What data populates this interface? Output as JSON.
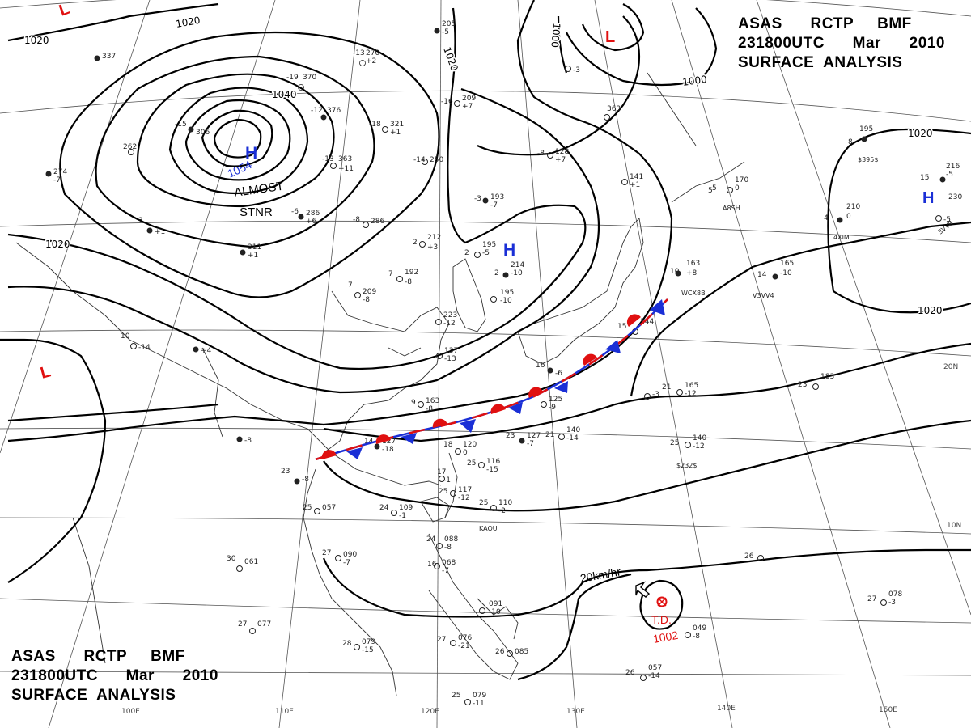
{
  "header": {
    "line1_parts": [
      "ASAS",
      "RCTP",
      "BMF"
    ],
    "line2_parts": [
      "231800UTC",
      "Mar",
      "2010"
    ],
    "line3": "SURFACE  ANALYSIS"
  },
  "pressure_centers": [
    {
      "type": "H",
      "value": "1054",
      "note": "ALMOST",
      "note2": "STNR",
      "color": "#1a2fd6"
    },
    {
      "type": "H",
      "value": "",
      "color": "#1a2fd6"
    },
    {
      "type": "H",
      "value": "",
      "color": "#1a2fd6"
    },
    {
      "type": "L",
      "value": "",
      "color": "#e01010"
    },
    {
      "type": "L",
      "value": "",
      "color": "#e01010"
    },
    {
      "type": "L",
      "value": "",
      "color": "#e01010"
    }
  ],
  "td": {
    "label": "T.D.",
    "pressure": "1002",
    "movement": "20km/hr",
    "color": "#e01010"
  },
  "isobar_labels": [
    "1020",
    "1020",
    "1020",
    "1040",
    "1020",
    "1000",
    "1000",
    "1020",
    "1020"
  ],
  "longitude_labels": [
    "110E",
    "120E",
    "130E",
    "140E",
    "150E",
    "100E"
  ],
  "latitude_labels": [
    "20N",
    "10N"
  ],
  "front": {
    "type": "stationary",
    "warm_color": "#e01010",
    "cold_color": "#1a2fd6"
  },
  "stations": [
    {
      "t": "-13",
      "p": "270",
      "dp": "+2"
    },
    {
      "t": "-19",
      "p": "370",
      "dp": ""
    },
    {
      "t": "-12",
      "p": "376",
      "dp": ""
    },
    {
      "t": "-18",
      "p": "321",
      "dp": "+1"
    },
    {
      "t": "-13",
      "p": "363",
      "dp": "+11"
    },
    {
      "t": "-15",
      "p": "306",
      "dp": ""
    },
    {
      "t": "-6",
      "p": "286",
      "dp": "+6"
    },
    {
      "t": "-8",
      "p": "286",
      "dp": ""
    },
    {
      "t": "-16",
      "p": "209",
      "dp": "+7"
    },
    {
      "t": "-14",
      "p": "250",
      "dp": ""
    },
    {
      "t": "-3",
      "p": "193",
      "dp": "-7"
    },
    {
      "t": "-8",
      "p": "128",
      "dp": "+7"
    },
    {
      "t": "2",
      "p": "212",
      "dp": "+3"
    },
    {
      "t": "7",
      "p": "209",
      "dp": "-8"
    },
    {
      "t": "7",
      "p": "192",
      "dp": "-8"
    },
    {
      "t": "9",
      "p": "163",
      "dp": "-8"
    },
    {
      "t": "14",
      "p": "127",
      "dp": "-18"
    },
    {
      "t": "18",
      "p": "120",
      "dp": "0"
    },
    {
      "t": "23",
      "p": "127",
      "dp": "-7"
    },
    {
      "t": "21",
      "p": "140",
      "dp": "-14"
    },
    {
      "t": "25",
      "p": "116",
      "dp": "-15"
    },
    {
      "t": "25",
      "p": "117",
      "dp": "-12"
    },
    {
      "t": "24",
      "p": "109",
      "dp": "-1"
    },
    {
      "t": "25",
      "p": "110",
      "dp": "-2"
    },
    {
      "t": "24",
      "p": "088",
      "dp": "-8"
    },
    {
      "t": "16",
      "p": "068",
      "dp": "-7"
    },
    {
      "t": "27",
      "p": "090",
      "dp": "-7"
    },
    {
      "t": "30",
      "p": "061",
      "dp": ""
    },
    {
      "t": "27",
      "p": "077",
      "dp": ""
    },
    {
      "t": "28",
      "p": "079",
      "dp": "-15"
    },
    {
      "t": "27",
      "p": "076",
      "dp": "-21"
    },
    {
      "t": "26",
      "p": "085",
      "dp": ""
    },
    {
      "t": "25",
      "p": "079",
      "dp": "-11"
    },
    {
      "t": "26",
      "p": "057",
      "dp": "-14"
    },
    {
      "t": "27",
      "p": "078",
      "dp": "-3"
    },
    {
      "t": "",
      "p": "049",
      "dp": "-8"
    },
    {
      "t": "21",
      "p": "165",
      "dp": "-12"
    },
    {
      "t": "23",
      "p": "183",
      "dp": ""
    },
    {
      "t": "25",
      "p": "140",
      "dp": "-12"
    },
    {
      "t": "10",
      "p": "163",
      "dp": "+8"
    },
    {
      "t": "14",
      "p": "165",
      "dp": "-10"
    },
    {
      "t": "4",
      "p": "210",
      "dp": "0"
    },
    {
      "t": "5",
      "p": "170",
      "dp": "0"
    },
    {
      "t": "8",
      "p": "195",
      "dp": ""
    },
    {
      "t": "15",
      "p": "216",
      "dp": "-5"
    },
    {
      "t": "",
      "p": "230",
      "dp": ""
    },
    {
      "t": "15",
      "p": "144",
      "dp": ""
    },
    {
      "t": "",
      "p": "223",
      "dp": "-12"
    },
    {
      "t": "2",
      "p": "195",
      "dp": "-5"
    },
    {
      "t": "2",
      "p": "214",
      "dp": "-10"
    },
    {
      "t": "",
      "p": "195",
      "dp": "-10"
    },
    {
      "t": "",
      "p": "205",
      "dp": "-5"
    },
    {
      "t": "",
      "p": "363",
      "dp": ""
    },
    {
      "t": "",
      "p": "262",
      "dp": ""
    },
    {
      "t": "",
      "p": "274",
      "dp": "-7"
    },
    {
      "t": "",
      "p": "311",
      "dp": "+1"
    },
    {
      "t": "",
      "p": "337",
      "dp": ""
    },
    {
      "t": "23",
      "p": "",
      "dp": "-8"
    },
    {
      "t": "25",
      "p": "057",
      "dp": ""
    },
    {
      "t": "",
      "p": "091",
      "dp": "-10"
    },
    {
      "t": "",
      "p": "125",
      "dp": "-9"
    },
    {
      "t": "",
      "p": "137",
      "dp": "-13"
    },
    {
      "t": "16",
      "p": "",
      "dp": "-6"
    },
    {
      "t": "10",
      "p": "",
      "dp": "-14"
    },
    {
      "t": "",
      "p": "",
      "dp": "-8"
    },
    {
      "t": "3",
      "p": "",
      "dp": "+1"
    },
    {
      "t": "5",
      "p": "",
      "dp": ""
    },
    {
      "t": "26",
      "p": "",
      "dp": ""
    },
    {
      "t": "17",
      "p": "",
      "dp": "-1"
    },
    {
      "t": "",
      "p": "",
      "dp": "-3"
    },
    {
      "t": "",
      "p": "141",
      "dp": "+1"
    },
    {
      "t": "",
      "p": "",
      "dp": "+4"
    },
    {
      "t": "",
      "p": "",
      "dp": "-3"
    },
    {
      "t": "",
      "p": "",
      "dp": "-5"
    }
  ],
  "ship_ids": [
    "$232$",
    "$395$",
    "A8SH",
    "4XIM",
    "WCX8B",
    "V3VV4",
    "3VVR",
    "KAOU"
  ]
}
